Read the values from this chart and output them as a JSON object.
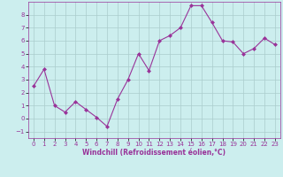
{
  "x": [
    0,
    1,
    2,
    3,
    4,
    5,
    6,
    7,
    8,
    9,
    10,
    11,
    12,
    13,
    14,
    15,
    16,
    17,
    18,
    19,
    20,
    21,
    22,
    23
  ],
  "y": [
    2.5,
    3.8,
    1.0,
    0.5,
    1.3,
    0.7,
    0.1,
    -0.6,
    1.5,
    3.0,
    5.0,
    3.7,
    6.0,
    6.4,
    7.0,
    8.7,
    8.7,
    7.4,
    6.0,
    5.9,
    5.0,
    5.4,
    6.2,
    5.7
  ],
  "line_color": "#993399",
  "marker": "D",
  "marker_size": 2.0,
  "bg_color": "#cceeee",
  "grid_color": "#aacccc",
  "xlabel": "Windchill (Refroidissement éolien,°C)",
  "xlabel_color": "#993399",
  "tick_color": "#993399",
  "xlim": [
    -0.5,
    23.5
  ],
  "ylim": [
    -1.5,
    9.0
  ],
  "yticks": [
    -1,
    0,
    1,
    2,
    3,
    4,
    5,
    6,
    7,
    8
  ],
  "xticks": [
    0,
    1,
    2,
    3,
    4,
    5,
    6,
    7,
    8,
    9,
    10,
    11,
    12,
    13,
    14,
    15,
    16,
    17,
    18,
    19,
    20,
    21,
    22,
    23
  ],
  "tick_fontsize": 5,
  "xlabel_fontsize": 5.5,
  "linewidth": 0.8
}
